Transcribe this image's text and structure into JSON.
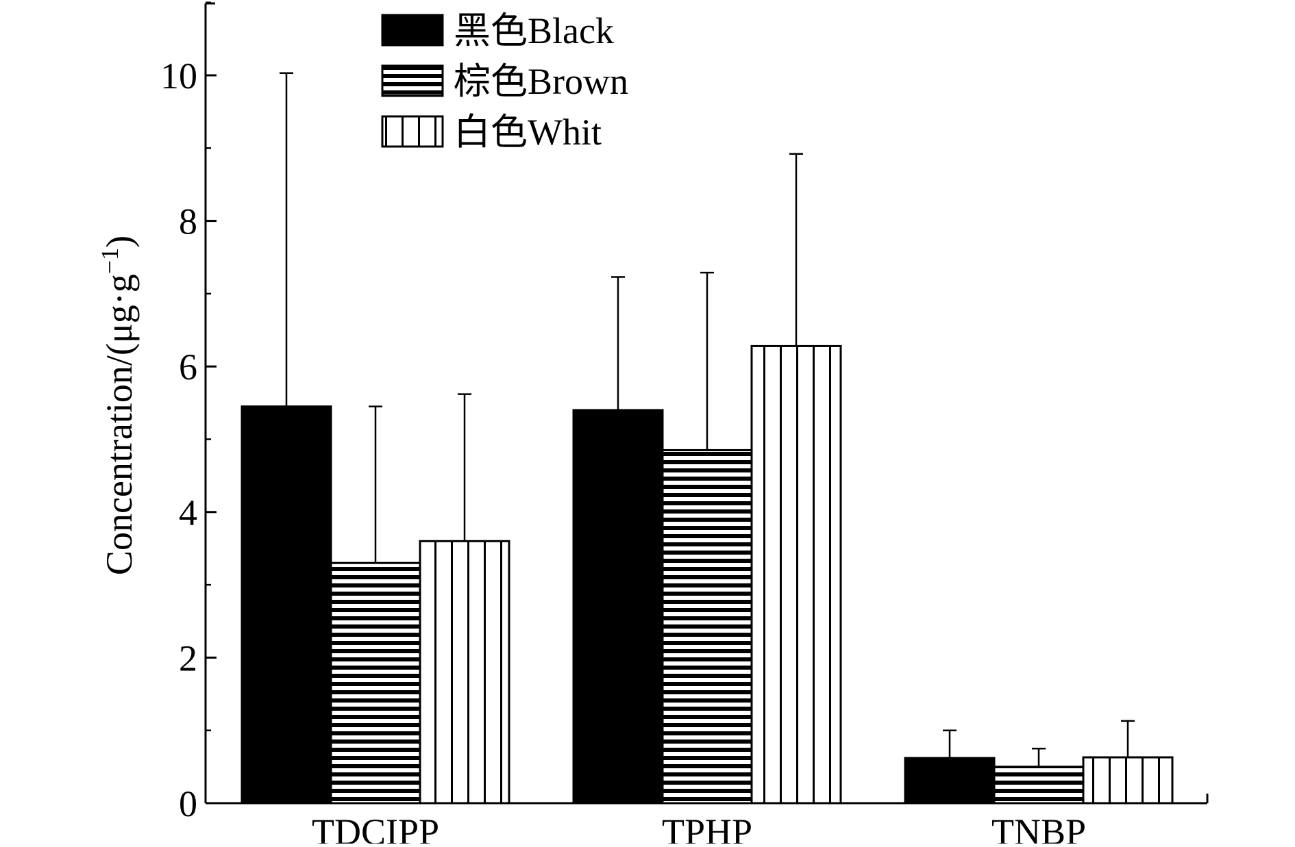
{
  "chart_data": {
    "type": "bar",
    "categories": [
      "TDCIPP",
      "TPHP",
      "TNBP"
    ],
    "ylabel": "Concentration/(μg·g",
    "ylabel_sup": "−1",
    "ylabel_close": ")",
    "ylim": [
      0,
      11
    ],
    "yticks": [
      0,
      2,
      4,
      6,
      8,
      10
    ],
    "grid": false,
    "legend_position": "top-center",
    "series": [
      {
        "name": "黑色Black",
        "pattern": "solid",
        "values": [
          5.45,
          5.4,
          0.62
        ],
        "errors": [
          4.58,
          1.83,
          0.38
        ]
      },
      {
        "name": "棕色Brown",
        "pattern": "horizontal-lines",
        "values": [
          3.3,
          4.85,
          0.5
        ],
        "errors": [
          2.15,
          2.44,
          0.25
        ]
      },
      {
        "name": "白色Whit",
        "pattern": "vertical-lines",
        "values": [
          3.6,
          6.28,
          0.63
        ],
        "errors": [
          2.02,
          2.64,
          0.5
        ]
      }
    ],
    "colors": {
      "ink": "#000000",
      "fill": "#ffffff"
    }
  }
}
